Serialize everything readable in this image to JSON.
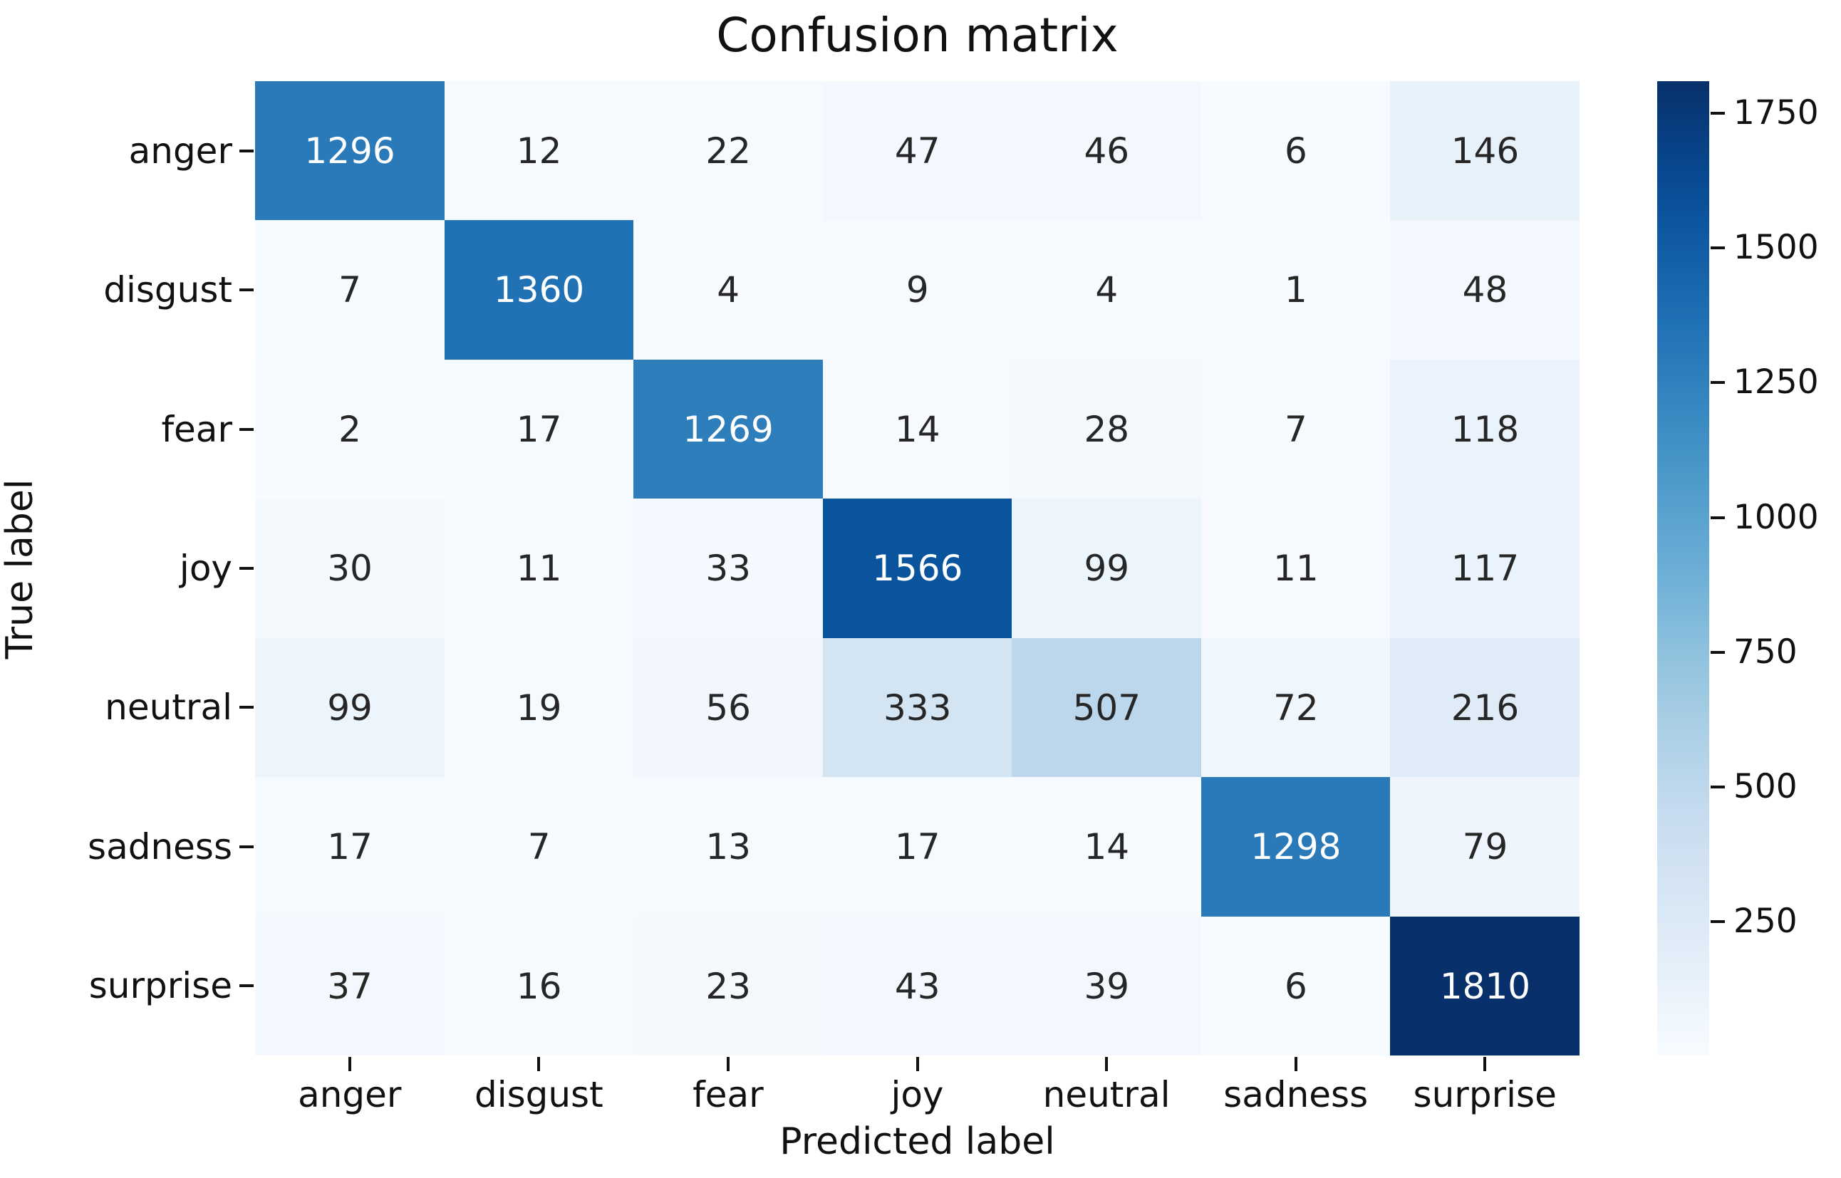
{
  "chart_data": {
    "type": "heatmap",
    "title": "Confusion matrix",
    "xlabel": "Predicted label",
    "ylabel": "True label",
    "x_categories": [
      "anger",
      "disgust",
      "fear",
      "joy",
      "neutral",
      "sadness",
      "surprise"
    ],
    "y_categories": [
      "anger",
      "disgust",
      "fear",
      "joy",
      "neutral",
      "sadness",
      "surprise"
    ],
    "matrix": [
      [
        1296,
        12,
        22,
        47,
        46,
        6,
        146
      ],
      [
        7,
        1360,
        4,
        9,
        4,
        1,
        48
      ],
      [
        2,
        17,
        1269,
        14,
        28,
        7,
        118
      ],
      [
        30,
        11,
        33,
        1566,
        99,
        11,
        117
      ],
      [
        99,
        19,
        56,
        333,
        507,
        72,
        216
      ],
      [
        17,
        7,
        13,
        17,
        14,
        1298,
        79
      ],
      [
        37,
        16,
        23,
        43,
        39,
        6,
        1810
      ]
    ],
    "vmin": 1,
    "vmax": 1810,
    "grid": false,
    "legend_position": "colorbar-right",
    "colormap": "Blues",
    "colormap_anchors": [
      [
        0.0,
        "#f7fbff"
      ],
      [
        0.125,
        "#deebf7"
      ],
      [
        0.25,
        "#c6dbef"
      ],
      [
        0.375,
        "#9ecae1"
      ],
      [
        0.5,
        "#6baed6"
      ],
      [
        0.625,
        "#4292c6"
      ],
      [
        0.75,
        "#2171b5"
      ],
      [
        0.875,
        "#08519c"
      ],
      [
        1.0,
        "#08306b"
      ]
    ],
    "colorbar_ticks": [
      1750,
      1500,
      1250,
      1000,
      750,
      500,
      250
    ],
    "annotation_text_colors": {
      "on_light": "#262626",
      "on_dark": "#ffffff"
    },
    "axis_text_color": "#111111"
  }
}
